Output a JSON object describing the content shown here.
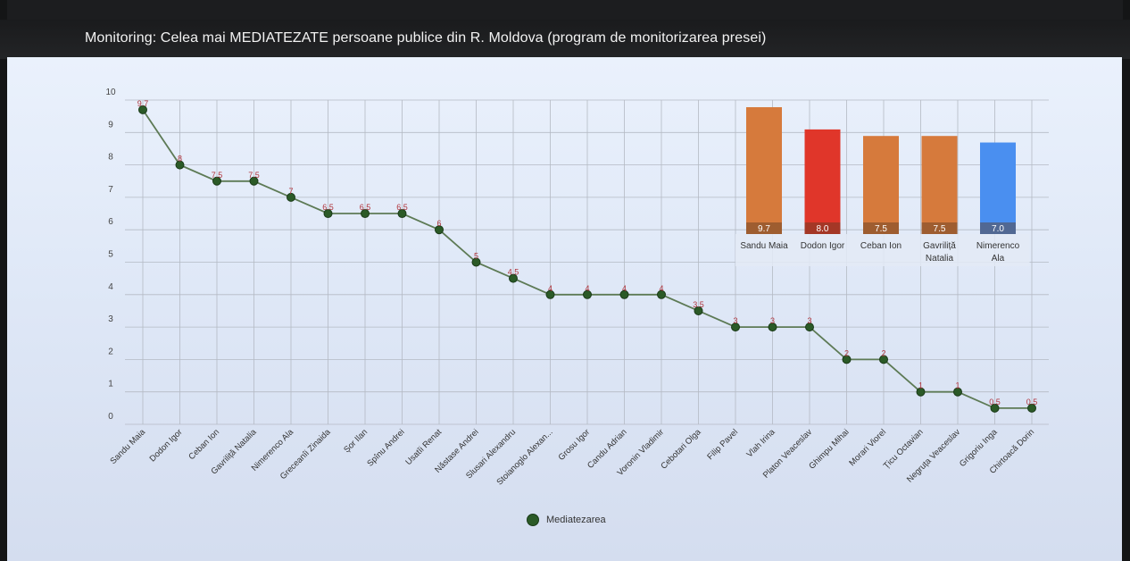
{
  "page": {
    "title": "Monitoring: Celea mai MEDIATEZATE persoane publice din R. Moldova (program de monitorizarea presei)"
  },
  "colors": {
    "line": "#5d7a55",
    "marker": "#2b5a27",
    "point_label": "#b0343c",
    "grid": "#b4bac4",
    "bar_orange": "#d67a3c",
    "bar_red": "#e0362a",
    "bar_blue": "#4a8ff0",
    "bar_value_bg": "#5a3a22"
  },
  "chart_data": [
    {
      "type": "line",
      "title": "",
      "xlabel": "",
      "ylabel": "",
      "ylim": [
        0,
        10
      ],
      "yticks": [
        0,
        1,
        2,
        3,
        4,
        5,
        6,
        7,
        8,
        9,
        10
      ],
      "grid": true,
      "legend_position": "bottom",
      "categories": [
        "Sandu Maia",
        "Dodon Igor",
        "Ceban Ion",
        "Gavriliță Natalia",
        "Nimerenco Ala",
        "Greceanîi Zinaida",
        "Șor Ilan",
        "Spînu Andrei",
        "Usatîi Renat",
        "Năstase Andrei",
        "Slusari Alexandru",
        "Stoianoglo Alexan...",
        "Grosu Igor",
        "Candu Adrian",
        "Voronin Vladimir",
        "Cebotari Olga",
        "Filip Pavel",
        "Vlah Irina",
        "Platon Veaceslav",
        "Ghimpu Mihai",
        "Morari Viorel",
        "Țicu Octavian",
        "Negruța Veaceslav",
        "Grigoriu Inga",
        "Chirtoacă Dorin"
      ],
      "series": [
        {
          "name": "Mediatezarea",
          "values": [
            9.7,
            8,
            7.5,
            7.5,
            7,
            6.5,
            6.5,
            6.5,
            6,
            5,
            4.5,
            4,
            4,
            4,
            4,
            3.5,
            3,
            3,
            3,
            2,
            2,
            1,
            1,
            0.5,
            0.5
          ]
        }
      ]
    },
    {
      "type": "bar",
      "title": "",
      "legend_position": "none",
      "categories": [
        "Sandu Maia",
        "Dodon Igor",
        "Ceban Ion",
        "Gavriliță Natalia",
        "Nimerenco Ala"
      ],
      "values": [
        9.7,
        8.0,
        7.5,
        7.5,
        7.0
      ],
      "value_labels": [
        "9.7",
        "8.0",
        "7.5",
        "7.5",
        "7.0"
      ],
      "bar_colors": [
        "#d67a3c",
        "#e0362a",
        "#d67a3c",
        "#d67a3c",
        "#4a8ff0"
      ]
    }
  ]
}
